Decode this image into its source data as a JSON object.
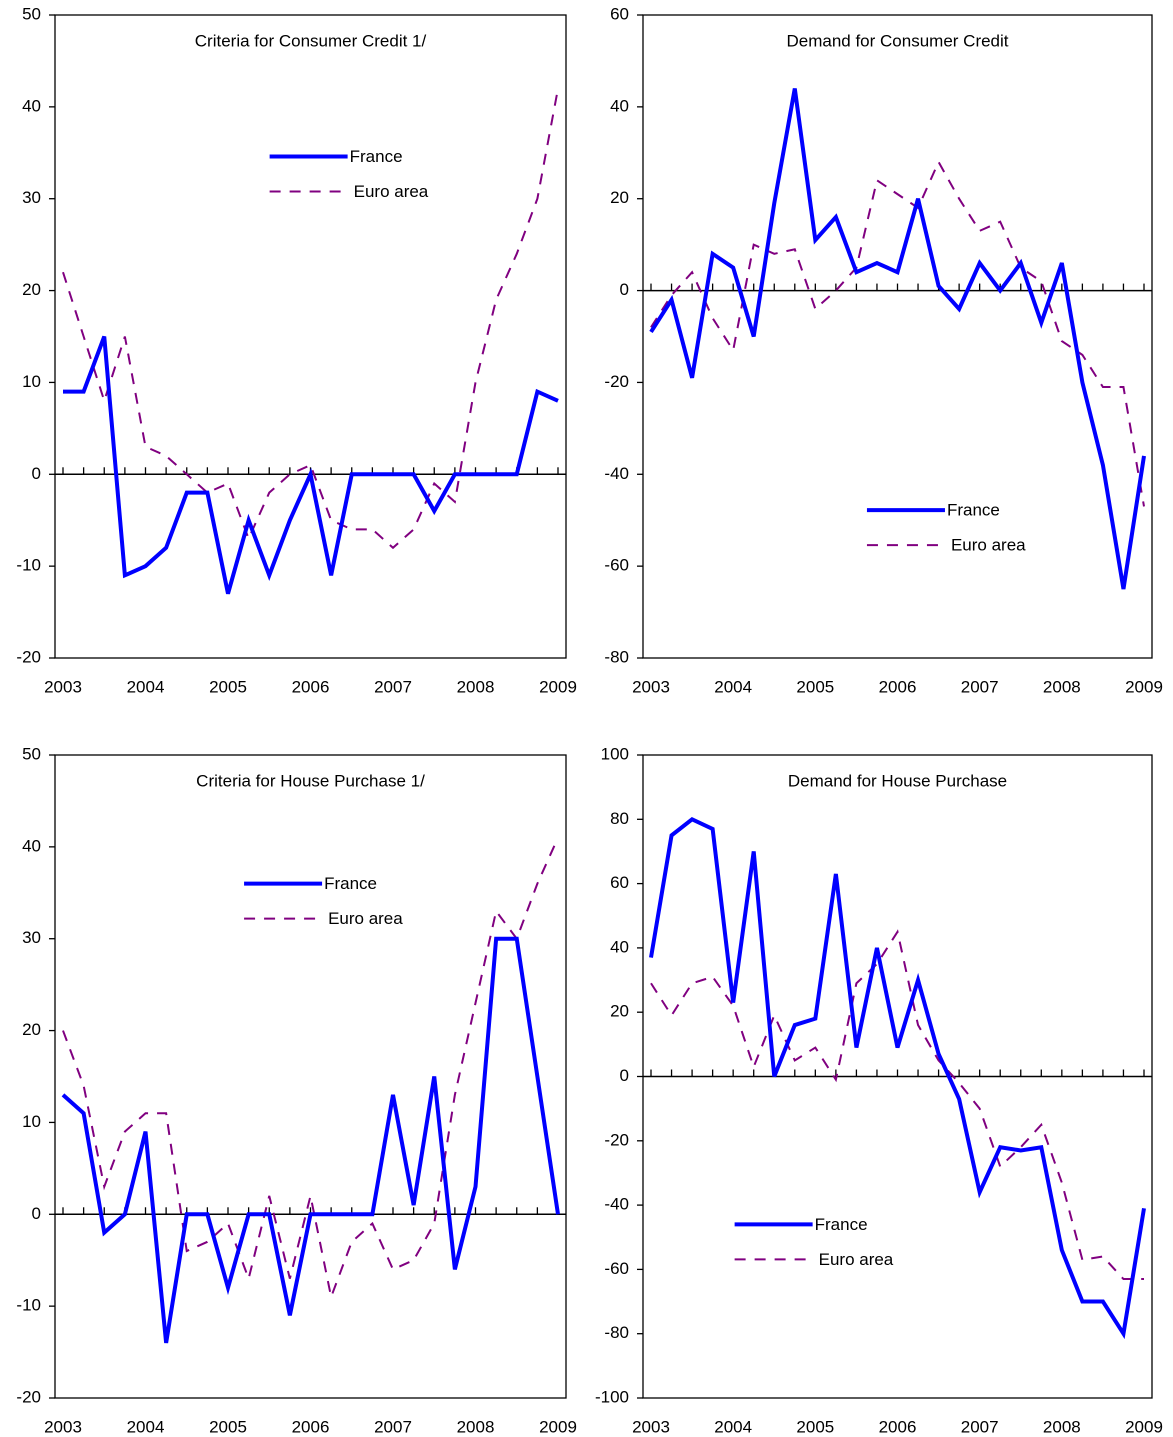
{
  "chart_data": [
    {
      "type": "line",
      "title": "Criteria for Consumer Credit 1/",
      "x": [
        2003,
        2003.25,
        2003.5,
        2003.75,
        2004,
        2004.25,
        2004.5,
        2004.75,
        2005,
        2005.25,
        2005.5,
        2005.75,
        2006,
        2006.25,
        2006.5,
        2006.75,
        2007,
        2007.25,
        2007.5,
        2007.75,
        2008,
        2008.25,
        2008.5,
        2008.75,
        2009
      ],
      "xlim": [
        2003,
        2009
      ],
      "xticks": [
        2003,
        2004,
        2005,
        2006,
        2007,
        2008,
        2009
      ],
      "ylim": [
        -20,
        50
      ],
      "yticks": [
        -20,
        -10,
        0,
        10,
        20,
        30,
        40,
        50
      ],
      "legend": "upper center",
      "series": [
        {
          "name": "France",
          "color": "#0000ff",
          "linestyle": "solid",
          "values": [
            9,
            9,
            15,
            -11,
            -10,
            -8,
            -2,
            -2,
            -13,
            -5,
            -11,
            -5,
            0,
            -11,
            0,
            0,
            0,
            0,
            -4,
            0,
            0,
            0,
            0,
            9,
            8
          ]
        },
        {
          "name": "Euro area",
          "color": "#800080",
          "linestyle": "dashed",
          "values": [
            22,
            15,
            8,
            15,
            3,
            2,
            0,
            -2,
            -1,
            -7,
            -2,
            0,
            1,
            -5,
            -6,
            -6,
            -8,
            -6,
            -1,
            -3,
            10,
            19,
            24,
            30,
            42
          ]
        }
      ]
    },
    {
      "type": "line",
      "title": "Demand for Consumer Credit",
      "x": [
        2003,
        2003.25,
        2003.5,
        2003.75,
        2004,
        2004.25,
        2004.5,
        2004.75,
        2005,
        2005.25,
        2005.5,
        2005.75,
        2006,
        2006.25,
        2006.5,
        2006.75,
        2007,
        2007.25,
        2007.5,
        2007.75,
        2008,
        2008.25,
        2008.5,
        2008.75,
        2009
      ],
      "xlim": [
        2003,
        2009
      ],
      "xticks": [
        2003,
        2004,
        2005,
        2006,
        2007,
        2008,
        2009
      ],
      "ylim": [
        -80,
        60
      ],
      "yticks": [
        -80,
        -60,
        -40,
        -20,
        0,
        20,
        40,
        60
      ],
      "legend": "lower right",
      "series": [
        {
          "name": "France",
          "color": "#0000ff",
          "linestyle": "solid",
          "values": [
            -9,
            -2,
            -19,
            8,
            5,
            -10,
            19,
            44,
            11,
            16,
            4,
            6,
            4,
            20,
            1,
            -4,
            6,
            0,
            6,
            -7,
            6,
            -20,
            -38,
            -65,
            -36
          ]
        },
        {
          "name": "Euro area",
          "color": "#800080",
          "linestyle": "dashed",
          "values": [
            -8,
            -1,
            4,
            -6,
            -13,
            10,
            8,
            9,
            -4,
            0,
            5,
            24,
            21,
            18,
            28,
            20,
            13,
            15,
            5,
            2,
            -11,
            -14,
            -21,
            -21,
            -47
          ]
        }
      ]
    },
    {
      "type": "line",
      "title": "Criteria for House Purchase 1/",
      "x": [
        2003,
        2003.25,
        2003.5,
        2003.75,
        2004,
        2004.25,
        2004.5,
        2004.75,
        2005,
        2005.25,
        2005.5,
        2005.75,
        2006,
        2006.25,
        2006.5,
        2006.75,
        2007,
        2007.25,
        2007.5,
        2007.75,
        2008,
        2008.25,
        2008.5,
        2008.75,
        2009
      ],
      "xlim": [
        2003,
        2009
      ],
      "xticks": [
        2003,
        2004,
        2005,
        2006,
        2007,
        2008,
        2009
      ],
      "ylim": [
        -20,
        50
      ],
      "yticks": [
        -20,
        -10,
        0,
        10,
        20,
        30,
        40,
        50
      ],
      "legend": "center",
      "series": [
        {
          "name": "France",
          "color": "#0000ff",
          "linestyle": "solid",
          "values": [
            13,
            11,
            -2,
            0,
            9,
            -14,
            0,
            0,
            -8,
            0,
            0,
            -11,
            0,
            0,
            0,
            0,
            13,
            1,
            15,
            -6,
            3,
            30,
            30,
            15,
            0
          ]
        },
        {
          "name": "Euro area",
          "color": "#800080",
          "linestyle": "dashed",
          "values": [
            20,
            14,
            3,
            9,
            11,
            11,
            -4,
            -3,
            -1,
            -7,
            2,
            -7,
            2,
            -9,
            -3,
            -1,
            -6,
            -5,
            -1,
            13,
            23,
            33,
            30,
            36,
            41
          ]
        }
      ]
    },
    {
      "type": "line",
      "title": "Demand for House Purchase",
      "x": [
        2003,
        2003.25,
        2003.5,
        2003.75,
        2004,
        2004.25,
        2004.5,
        2004.75,
        2005,
        2005.25,
        2005.5,
        2005.75,
        2006,
        2006.25,
        2006.5,
        2006.75,
        2007,
        2007.25,
        2007.5,
        2007.75,
        2008,
        2008.25,
        2008.5,
        2008.75,
        2009
      ],
      "xlim": [
        2003,
        2009
      ],
      "xticks": [
        2003,
        2004,
        2005,
        2006,
        2007,
        2008,
        2009
      ],
      "ylim": [
        -100,
        100
      ],
      "yticks": [
        -100,
        -80,
        -60,
        -40,
        -20,
        0,
        20,
        40,
        60,
        80,
        100
      ],
      "legend": "lower left",
      "series": [
        {
          "name": "France",
          "color": "#0000ff",
          "linestyle": "solid",
          "values": [
            37,
            75,
            80,
            77,
            23,
            70,
            0,
            16,
            18,
            63,
            9,
            40,
            9,
            30,
            7,
            -7,
            -36,
            -22,
            -23,
            -22,
            -54,
            -70,
            -70,
            -80,
            -41
          ]
        },
        {
          "name": "Euro area",
          "color": "#800080",
          "linestyle": "dashed",
          "values": [
            29,
            19,
            29,
            31,
            22,
            3,
            19,
            5,
            9,
            -1,
            29,
            35,
            45,
            16,
            5,
            -2,
            -10,
            -28,
            -22,
            -15,
            -33,
            -57,
            -56,
            -63,
            -63
          ]
        }
      ]
    }
  ]
}
